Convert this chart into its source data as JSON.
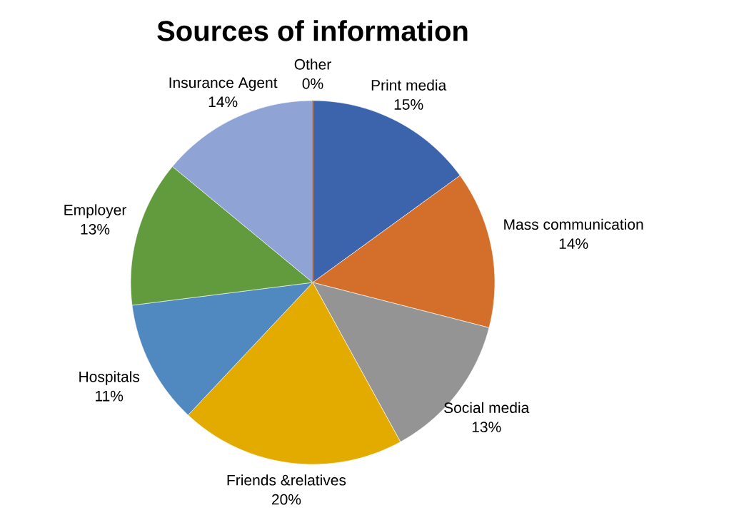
{
  "chart_data": {
    "type": "pie",
    "title": "Sources of information",
    "categories": [
      "Print media",
      "Mass communication",
      "Social media",
      "Friends &relatives",
      "Hospitals",
      "Employer",
      "Insurance Agent",
      "Other"
    ],
    "values": [
      15,
      14,
      13,
      20,
      11,
      13,
      14,
      0
    ],
    "value_labels": [
      "15%",
      "14%",
      "13%",
      "20%",
      "11%",
      "13%",
      "14%",
      "0%"
    ],
    "colors": [
      "#3c64ad",
      "#d36e2b",
      "#949494",
      "#e3aa00",
      "#4f89c0",
      "#629a3e",
      "#8fa3d5",
      "#d36e2b"
    ]
  }
}
